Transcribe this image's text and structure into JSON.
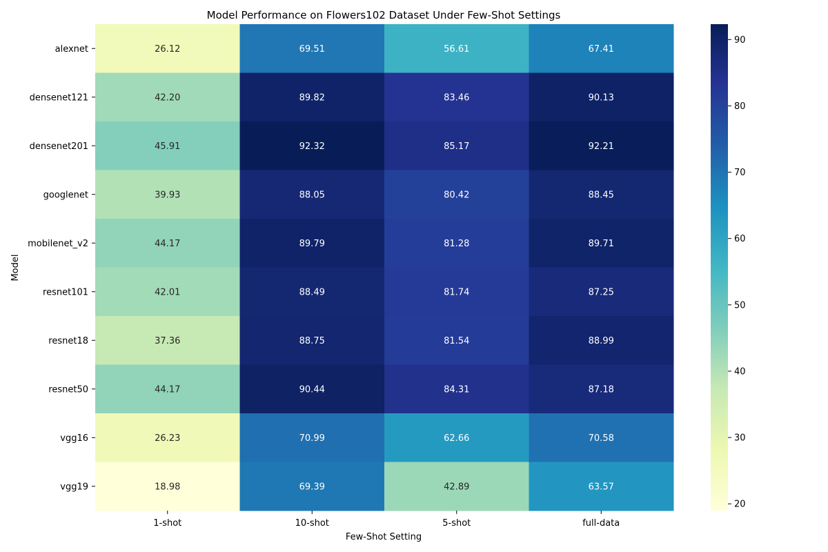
{
  "chart_data": {
    "type": "heatmap",
    "title": "Model Performance on Flowers102 Dataset Under Few-Shot Settings",
    "xlabel": "Few-Shot Setting",
    "ylabel": "Model",
    "x_categories": [
      "1-shot",
      "10-shot",
      "5-shot",
      "full-data"
    ],
    "y_categories": [
      "alexnet",
      "densenet121",
      "densenet201",
      "googlenet",
      "mobilenet_v2",
      "resnet101",
      "resnet18",
      "resnet50",
      "vgg16",
      "vgg19"
    ],
    "values": [
      [
        26.12,
        69.51,
        56.61,
        67.41
      ],
      [
        42.2,
        89.82,
        83.46,
        90.13
      ],
      [
        45.91,
        92.32,
        85.17,
        92.21
      ],
      [
        39.93,
        88.05,
        80.42,
        88.45
      ],
      [
        44.17,
        89.79,
        81.28,
        89.71
      ],
      [
        42.01,
        88.49,
        81.74,
        87.25
      ],
      [
        37.36,
        88.75,
        81.54,
        88.99
      ],
      [
        44.17,
        90.44,
        84.31,
        87.18
      ],
      [
        26.23,
        70.99,
        62.66,
        70.58
      ],
      [
        18.98,
        69.39,
        42.89,
        63.57
      ]
    ],
    "value_format": "2 decimals",
    "colormap": "YlGnBu",
    "colorbar": {
      "min": 18.98,
      "max": 92.32,
      "ticks": [
        20,
        30,
        40,
        50,
        60,
        70,
        80,
        90
      ]
    },
    "grid": false,
    "legend": "colorbar-right"
  }
}
